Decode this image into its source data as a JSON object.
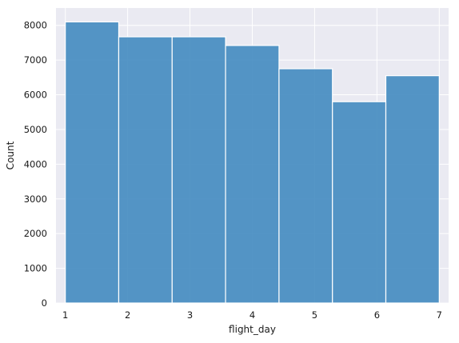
{
  "chart_data": {
    "type": "bar",
    "subtype": "histogram",
    "title": "",
    "xlabel": "flight_day",
    "ylabel": "Count",
    "bins": [
      {
        "start": 1.0,
        "end": 1.857,
        "value": 8100
      },
      {
        "start": 1.857,
        "end": 2.714,
        "value": 7670
      },
      {
        "start": 2.714,
        "end": 3.571,
        "value": 7670
      },
      {
        "start": 3.571,
        "end": 4.429,
        "value": 7420
      },
      {
        "start": 4.429,
        "end": 5.286,
        "value": 6750
      },
      {
        "start": 5.286,
        "end": 6.143,
        "value": 5800
      },
      {
        "start": 6.143,
        "end": 7.0,
        "value": 6550
      }
    ],
    "xlim": [
      0.85,
      7.15
    ],
    "ylim": [
      0,
      8500
    ],
    "x_ticks": [
      1,
      2,
      3,
      4,
      5,
      6,
      7
    ],
    "x_tick_labels": [
      "1",
      "2",
      "3",
      "4",
      "5",
      "6",
      "7"
    ],
    "y_ticks": [
      0,
      1000,
      2000,
      3000,
      4000,
      5000,
      6000,
      7000,
      8000
    ],
    "y_tick_labels": [
      "0",
      "1000",
      "2000",
      "3000",
      "4000",
      "5000",
      "6000",
      "7000",
      "8000"
    ],
    "grid": true,
    "colors": {
      "bar": "#3d87be",
      "background": "#eaeaf2",
      "grid": "#ffffff",
      "bar_edge": "#ffffff"
    }
  }
}
